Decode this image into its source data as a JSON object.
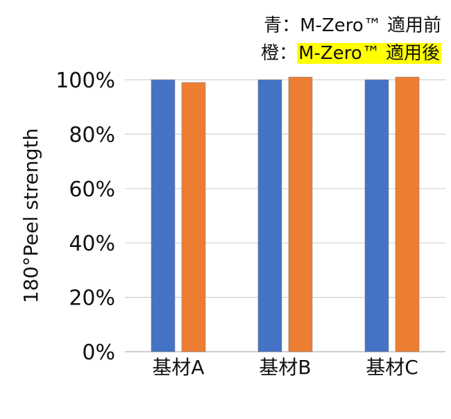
{
  "chart_data": {
    "type": "bar",
    "categories": [
      "基材A",
      "基材B",
      "基材C"
    ],
    "series": [
      {
        "name": "M-Zero™ 適用前",
        "prefix": "青：",
        "color": "#4472c4",
        "values": [
          100,
          100,
          100
        ]
      },
      {
        "name": "M-Zero™ 適用後",
        "prefix": "橙：",
        "color": "#ed7d31",
        "values": [
          99,
          101,
          101
        ]
      }
    ],
    "ylabel": "180°Peel strength",
    "ylim": [
      0,
      100
    ],
    "yticks": [
      "0%",
      "20%",
      "40%",
      "60%",
      "80%",
      "100%"
    ],
    "legend_highlight": "#ffff00",
    "grid": true,
    "legend_position": "top-right"
  }
}
